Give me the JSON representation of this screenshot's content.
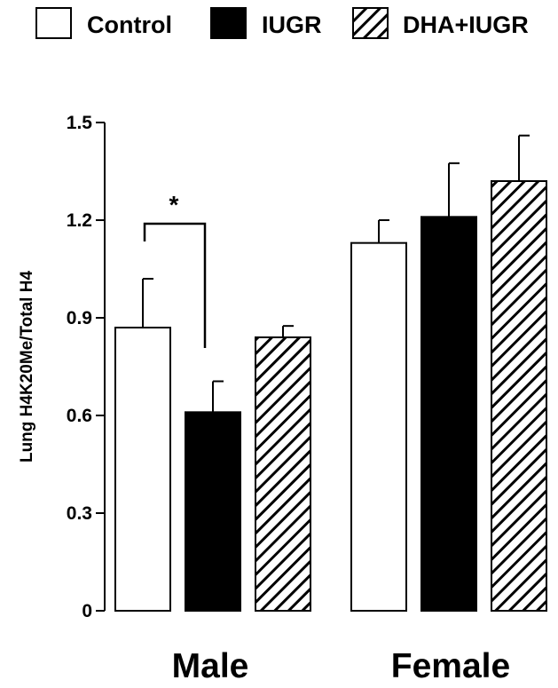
{
  "chart_data": {
    "type": "bar",
    "categories": [
      "Male",
      "Female"
    ],
    "series": [
      {
        "name": "Control",
        "fill": "white",
        "values": [
          0.87,
          1.13
        ],
        "errors": [
          0.15,
          0.07
        ]
      },
      {
        "name": "IUGR",
        "fill": "black",
        "values": [
          0.61,
          1.21
        ],
        "errors": [
          0.095,
          0.165
        ]
      },
      {
        "name": "DHA+IUGR",
        "fill": "hatched",
        "values": [
          0.84,
          1.32
        ],
        "errors": [
          0.035,
          0.14
        ]
      }
    ],
    "ylabel": "Lung H4K20Me/Total H4",
    "ylim": [
      0,
      1.5
    ],
    "yticks": [
      "0",
      "0.3",
      "0.6",
      "0.9",
      "1.2",
      "1.5"
    ],
    "ytick_values": [
      0,
      0.3,
      0.6,
      0.9,
      1.2,
      1.5
    ],
    "legend_position": "top",
    "grid": false,
    "annotation": {
      "text": "*",
      "category": "Male",
      "between": [
        "Control",
        "IUGR"
      ]
    },
    "colors": {
      "bar_outline": "#000000",
      "iugr_fill": "#000000",
      "control_fill": "#ffffff"
    }
  }
}
